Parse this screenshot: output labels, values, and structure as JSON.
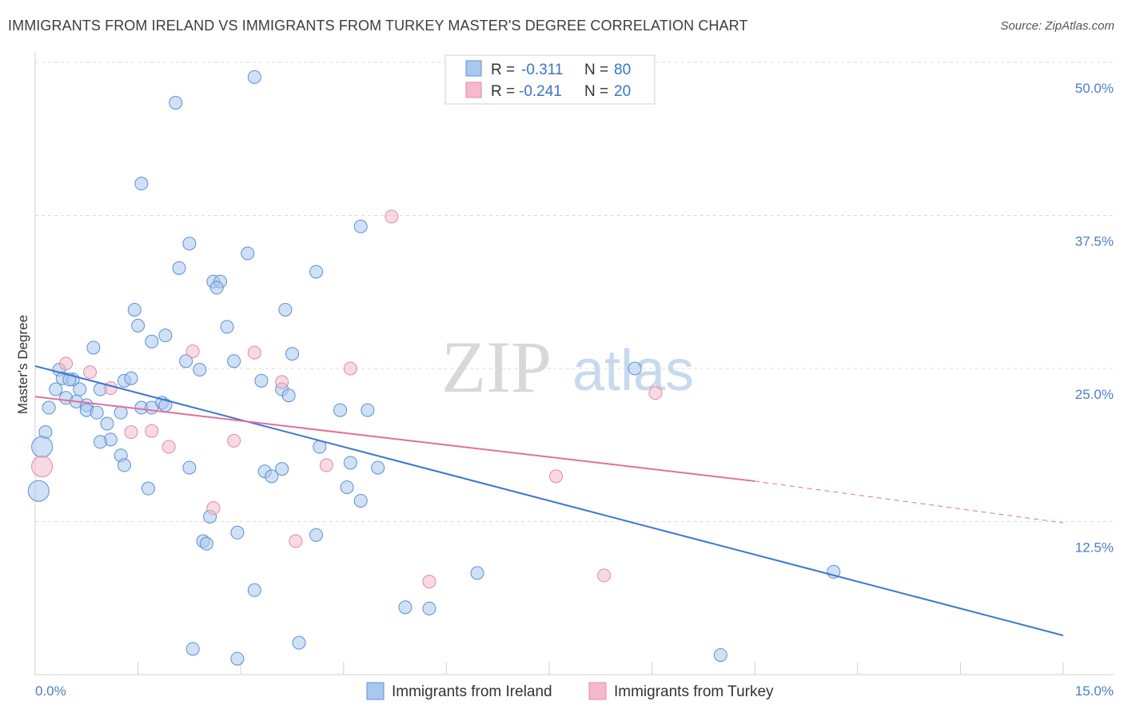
{
  "header": {
    "title": "IMMIGRANTS FROM IRELAND VS IMMIGRANTS FROM TURKEY MASTER'S DEGREE CORRELATION CHART",
    "source": "Source: ZipAtlas.com"
  },
  "watermark": {
    "zip": "ZIP",
    "atlas": "atlas"
  },
  "legend_box": [
    {
      "r_label": "R =",
      "r_value": "-0.311",
      "n_label": "N =",
      "n_value": "80",
      "color": "#a9c8ee"
    },
    {
      "r_label": "R =",
      "r_value": "-0.241",
      "n_label": "N =",
      "n_value": "20",
      "color": "#f6b9cc"
    }
  ],
  "chart_data": {
    "type": "scatter",
    "title": "IMMIGRANTS FROM IRELAND VS IMMIGRANTS FROM TURKEY MASTER'S DEGREE CORRELATION CHART",
    "xlabel": "",
    "ylabel": "Master's Degree",
    "xlim": [
      0,
      15
    ],
    "ylim": [
      0,
      52
    ],
    "x_tick_labels": [
      {
        "value": 0,
        "label": "0.0%"
      },
      {
        "value": 15,
        "label": "15.0%"
      }
    ],
    "y_tick_labels": [
      {
        "value": 12.5,
        "label": "12.5%"
      },
      {
        "value": 25,
        "label": "25.0%"
      },
      {
        "value": 37.5,
        "label": "37.5%"
      },
      {
        "value": 50,
        "label": "50.0%"
      }
    ],
    "grid": true,
    "legend_position": "top-center",
    "series": [
      {
        "name": "Immigrants from Ireland",
        "color": "#a9c8ee",
        "stroke": "#5b8fd6",
        "trend": {
          "x": [
            0,
            15
          ],
          "y": [
            25.2,
            3.2
          ],
          "color": "#3b76cf"
        },
        "points": [
          [
            3.2,
            48.8
          ],
          [
            2.05,
            46.7
          ],
          [
            1.55,
            40.1
          ],
          [
            4.75,
            36.6
          ],
          [
            2.25,
            35.2
          ],
          [
            3.1,
            34.4
          ],
          [
            2.1,
            33.2
          ],
          [
            4.1,
            32.9
          ],
          [
            2.6,
            32.1
          ],
          [
            2.7,
            32.1
          ],
          [
            2.65,
            31.6
          ],
          [
            1.45,
            29.8
          ],
          [
            3.65,
            29.8
          ],
          [
            1.5,
            28.5
          ],
          [
            2.8,
            28.4
          ],
          [
            1.9,
            27.7
          ],
          [
            1.7,
            27.2
          ],
          [
            0.85,
            26.7
          ],
          [
            3.75,
            26.2
          ],
          [
            2.2,
            25.6
          ],
          [
            2.9,
            25.6
          ],
          [
            2.4,
            24.9
          ],
          [
            0.35,
            24.9
          ],
          [
            0.4,
            24.2
          ],
          [
            0.55,
            24.1
          ],
          [
            0.5,
            24.1
          ],
          [
            1.3,
            24.0
          ],
          [
            1.4,
            24.2
          ],
          [
            3.3,
            24.0
          ],
          [
            0.3,
            23.3
          ],
          [
            0.65,
            23.3
          ],
          [
            0.95,
            23.3
          ],
          [
            3.6,
            23.3
          ],
          [
            3.7,
            22.8
          ],
          [
            0.45,
            22.6
          ],
          [
            0.6,
            22.3
          ],
          [
            0.75,
            22.0
          ],
          [
            1.85,
            22.2
          ],
          [
            1.9,
            22.0
          ],
          [
            0.2,
            21.8
          ],
          [
            1.55,
            21.8
          ],
          [
            1.7,
            21.8
          ],
          [
            0.75,
            21.6
          ],
          [
            0.9,
            21.4
          ],
          [
            1.25,
            21.4
          ],
          [
            4.45,
            21.6
          ],
          [
            4.85,
            21.6
          ],
          [
            1.05,
            20.5
          ],
          [
            0.15,
            19.8
          ],
          [
            1.1,
            19.2
          ],
          [
            0.95,
            19.0
          ],
          [
            0.1,
            18.6
          ],
          [
            4.15,
            18.6
          ],
          [
            1.25,
            17.9
          ],
          [
            1.3,
            17.1
          ],
          [
            4.6,
            17.3
          ],
          [
            5.0,
            16.9
          ],
          [
            2.25,
            16.9
          ],
          [
            3.35,
            16.6
          ],
          [
            3.45,
            16.2
          ],
          [
            3.6,
            16.8
          ],
          [
            0.05,
            15.0
          ],
          [
            1.65,
            15.2
          ],
          [
            4.55,
            15.3
          ],
          [
            4.75,
            14.2
          ],
          [
            2.55,
            12.9
          ],
          [
            2.95,
            11.6
          ],
          [
            4.1,
            11.4
          ],
          [
            2.45,
            10.9
          ],
          [
            2.5,
            10.7
          ],
          [
            6.45,
            8.3
          ],
          [
            11.65,
            8.4
          ],
          [
            3.2,
            6.9
          ],
          [
            5.4,
            5.5
          ],
          [
            5.75,
            5.4
          ],
          [
            3.85,
            2.6
          ],
          [
            2.3,
            2.1
          ],
          [
            2.95,
            1.3
          ],
          [
            10.0,
            1.6
          ],
          [
            8.75,
            25.0
          ]
        ]
      },
      {
        "name": "Immigrants from Turkey",
        "color": "#f6b9cc",
        "stroke": "#e08aa6",
        "trend": {
          "x": [
            0,
            10.5
          ],
          "y": [
            22.7,
            15.8
          ],
          "color": "#e0709a",
          "dashed_extension": {
            "x": [
              10.5,
              15
            ],
            "y": [
              15.8,
              12.4
            ]
          }
        },
        "points": [
          [
            5.2,
            37.4
          ],
          [
            2.3,
            26.4
          ],
          [
            3.2,
            26.3
          ],
          [
            0.45,
            25.4
          ],
          [
            4.6,
            25.0
          ],
          [
            0.8,
            24.7
          ],
          [
            3.6,
            23.9
          ],
          [
            1.1,
            23.4
          ],
          [
            9.05,
            23.0
          ],
          [
            1.4,
            19.8
          ],
          [
            1.7,
            19.9
          ],
          [
            2.9,
            19.1
          ],
          [
            1.95,
            18.6
          ],
          [
            0.1,
            17.0
          ],
          [
            4.25,
            17.1
          ],
          [
            7.6,
            16.2
          ],
          [
            2.6,
            13.6
          ],
          [
            3.8,
            10.9
          ],
          [
            5.75,
            7.6
          ],
          [
            8.3,
            8.1
          ]
        ]
      }
    ]
  },
  "bottom_legend": [
    {
      "label": "Immigrants from Ireland",
      "color": "#a9c8ee"
    },
    {
      "label": "Immigrants from Turkey",
      "color": "#f6b9cc"
    }
  ]
}
